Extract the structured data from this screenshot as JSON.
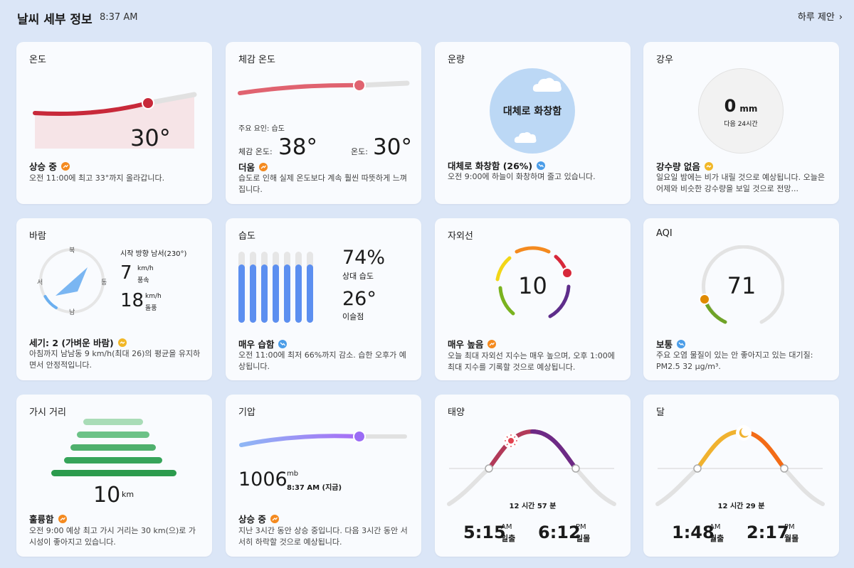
{
  "header": {
    "title": "날씨 세부 정보",
    "time": "8:37 AM",
    "link": "하루 제안"
  },
  "temperature": {
    "title": "온도",
    "value": "30°",
    "status": "상승 중",
    "desc": "오전 11:00에 최고 33°까지 올라갑니다."
  },
  "feels_like": {
    "title": "체감 온도",
    "factor": "주요 요인: 습도",
    "feels_label": "체감 온도:",
    "feels_value": "38°",
    "temp_label": "온도:",
    "temp_value": "30°",
    "status": "더움",
    "desc": "습도로 인해 실제 온도보다 계속 훨씬 따뜻하게 느껴집니다."
  },
  "cloud": {
    "title": "운량",
    "circle_text": "대체로 화창함",
    "status": "대체로 화창함 (26%)",
    "desc": "오전 9:00에 하늘이 화창하며 줄고 있습니다."
  },
  "precip": {
    "title": "강우",
    "value": "0",
    "unit": "mm",
    "sub": "다음 24시간",
    "status": "강수량 없음",
    "desc": "일요일 밤에는 비가 내릴 것으로 예상됩니다. 오늘은 어제와 비슷한 강수량을 보일 것으로 전망..."
  },
  "wind": {
    "title": "바람",
    "n": "북",
    "s": "남",
    "e": "동",
    "w": "서",
    "direction": "시작 방향 남서(230°)",
    "speed": "7",
    "speed_unit": "km/h",
    "speed_label": "풍속",
    "gust": "18",
    "gust_unit": "km/h",
    "gust_label": "돌풍",
    "status": "세기: 2 (가벼운 바람)",
    "desc": "아침까지 남남동 9 km/h(최대 26)의 평균을 유지하면서 안정적입니다."
  },
  "humidity": {
    "title": "습도",
    "value": "74%",
    "value_label": "상대 습도",
    "dew": "26°",
    "dew_label": "이슬점",
    "status": "매우 습함",
    "desc": "오전 11:00에 최저 66%까지 감소. 습한 오후가 예상됩니다."
  },
  "uv": {
    "title": "자외선",
    "value": "10",
    "status": "매우 높음",
    "desc": "오늘 최대 자외선 지수는 매우 높으며, 오후 1:00에 최대 지수를 기록할 것으로 예상됩니다."
  },
  "aqi": {
    "title": "AQI",
    "value": "71",
    "status": "보통",
    "desc": "주요 오염 물질이 있는 안 좋아지고 있는 대기질: PM2.5 32 μg/m³."
  },
  "visibility": {
    "title": "가시 거리",
    "value": "10",
    "unit": "km",
    "status": "훌륭함",
    "desc": "오전 9:00 예상 최고 가시 거리는 30 km(으)로 가시성이 좋아지고 있습니다."
  },
  "pressure": {
    "title": "기압",
    "value": "1006",
    "unit": "mb",
    "time": "8:37 AM (지금)",
    "status": "상승 중",
    "desc": "지난 3시간 동안 상승 중입니다. 다음 3시간 동안 서서히 하락할 것으로 예상됩니다."
  },
  "sun": {
    "title": "태양",
    "duration": "12 시간 57 분",
    "rise_time": "5:15",
    "rise_ampm": "AM",
    "rise_label": "일출",
    "set_time": "6:12",
    "set_ampm": "PM",
    "set_label": "일몰"
  },
  "moon": {
    "title": "달",
    "duration": "12 시간 29 분",
    "rise_time": "1:48",
    "rise_ampm": "AM",
    "rise_label": "월출",
    "set_time": "2:17",
    "set_ampm": "PM",
    "set_label": "월몰"
  },
  "colors": {
    "temp_line": "#c8293a",
    "feels_line": "#e06370",
    "pressure_line": "#9b7bff",
    "humidity_bar": "#5c8ff0",
    "visibility_bar": "#2ea44f",
    "sun_arc": "#b23a59",
    "moon_arc": "#f0b22f"
  }
}
